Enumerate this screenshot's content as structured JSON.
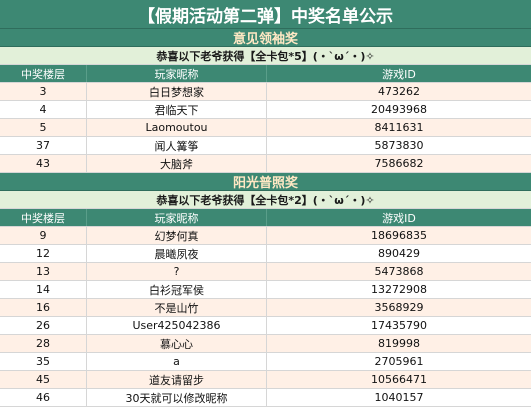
{
  "title": "【假期活动第二弹】中奖名单公示",
  "columns": {
    "floor": "中奖楼层",
    "nickname": "玩家昵称",
    "game_id": "游戏ID"
  },
  "sections": [
    {
      "name": "意见领袖奖",
      "prize": "恭喜以下老爷获得【全卡包*5】(・`ω´・)✧",
      "rows": [
        {
          "floor": "3",
          "nickname": "白日梦想家",
          "game_id": "473262"
        },
        {
          "floor": "4",
          "nickname": "君临天下",
          "game_id": "20493968"
        },
        {
          "floor": "5",
          "nickname": "Laomoutou",
          "game_id": "8411631"
        },
        {
          "floor": "37",
          "nickname": "闻人篝筝",
          "game_id": "5873830"
        },
        {
          "floor": "43",
          "nickname": "大脑斧",
          "game_id": "7586682"
        }
      ]
    },
    {
      "name": "阳光普照奖",
      "prize": "恭喜以下老爷获得【全卡包*2】(・`ω´・)✧",
      "rows": [
        {
          "floor": "9",
          "nickname": "幻梦何真",
          "game_id": "18696835"
        },
        {
          "floor": "12",
          "nickname": "晨曦夙夜",
          "game_id": "890429"
        },
        {
          "floor": "13",
          "nickname": "?",
          "game_id": "5473868"
        },
        {
          "floor": "14",
          "nickname": "白衫冠军侯",
          "game_id": "13272908"
        },
        {
          "floor": "16",
          "nickname": "不是山竹",
          "game_id": "3568929"
        },
        {
          "floor": "26",
          "nickname": "User425042386",
          "game_id": "17435790"
        },
        {
          "floor": "28",
          "nickname": "慕心心",
          "game_id": "819998"
        },
        {
          "floor": "35",
          "nickname": "a",
          "game_id": "2705961"
        },
        {
          "floor": "45",
          "nickname": "道友请留步",
          "game_id": "10566471"
        },
        {
          "floor": "46",
          "nickname": "30天就可以修改昵称",
          "game_id": "1040157"
        }
      ]
    }
  ]
}
